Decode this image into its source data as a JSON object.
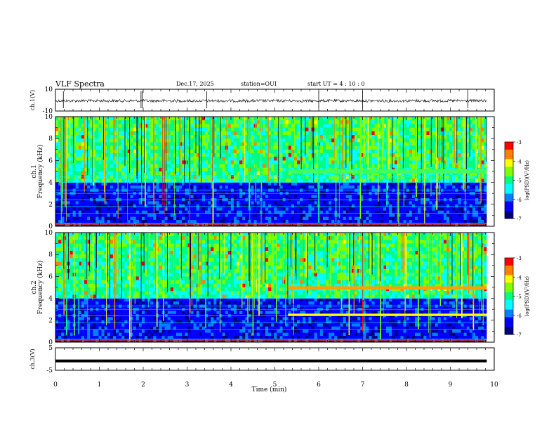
{
  "header": {
    "title": "VLF Spectra",
    "date": "Dec.17, 2025",
    "station": "station=OUI",
    "start": "start UT =   4 : 10 : 0"
  },
  "chart_data": [
    {
      "type": "line",
      "id": "ch1-waveform",
      "ylabel": "ch.1(V)",
      "ylim": [
        -10,
        10
      ],
      "yticks": [
        "10",
        "-10"
      ],
      "xlim": [
        0,
        10
      ],
      "description_values": {
        "baseline_v": 0.0,
        "noise_v": 0.6,
        "spikes_min": [
          0.18,
          1.95,
          1.98,
          3.45,
          6.0,
          7.0,
          9.4
        ]
      }
    },
    {
      "type": "heatmap",
      "id": "ch1-spectrogram",
      "ylabel": "ch.1\nFrequency (kHz)",
      "ylim": [
        0,
        10
      ],
      "yticks": [
        "0",
        "2",
        "4",
        "6",
        "8",
        "10"
      ],
      "xlim": [
        0,
        10
      ],
      "colorbar": {
        "label": "log(PSD)(V²/Hz)",
        "range": [
          -7,
          -3
        ],
        "ticks": [
          "-3",
          "-4",
          "-5",
          "-6",
          "-7"
        ]
      },
      "features": {
        "emission_band_khz": [
          4.8,
          5.2
        ],
        "emission_start_min": 5.3,
        "lines_khz": [
          0.3,
          1.2,
          1.8,
          2.4,
          3.0,
          3.3,
          4.0,
          4.5
        ]
      }
    },
    {
      "type": "heatmap",
      "id": "ch2-spectrogram",
      "ylabel": "ch.2\nFrequency (kHz)",
      "ylim": [
        0,
        10
      ],
      "yticks": [
        "0",
        "2",
        "4",
        "6",
        "8",
        "10"
      ],
      "xlim": [
        0,
        10
      ],
      "colorbar": {
        "label": "log(PSD)(V²/Hz)",
        "range": [
          -7,
          -3
        ],
        "ticks": [
          "-3",
          "-4",
          "-5",
          "-6",
          "-7"
        ]
      },
      "features": {
        "emission_band_khz": [
          4.8,
          5.1
        ],
        "second_band_khz": [
          2.4,
          2.6
        ],
        "emission_start_min": 5.3
      }
    },
    {
      "type": "line",
      "id": "ch3-waveform",
      "ylabel": "ch.3(V)",
      "ylim": [
        -5,
        5
      ],
      "yticks": [
        "5",
        "-5"
      ],
      "xlim": [
        0,
        10
      ],
      "description_values": {
        "level_v": -1.0
      }
    }
  ],
  "xaxis": {
    "label": "Time (min)",
    "ticks": [
      "0",
      "1",
      "2",
      "3",
      "4",
      "5",
      "6",
      "7",
      "8",
      "9",
      "10"
    ],
    "data_end_min": 9.83
  },
  "colors": {
    "cmap": [
      "#000080",
      "#0000ff",
      "#0080ff",
      "#00ffff",
      "#00ff80",
      "#80ff00",
      "#ffff00",
      "#ff8000",
      "#ff0000",
      "#ffffff"
    ]
  }
}
